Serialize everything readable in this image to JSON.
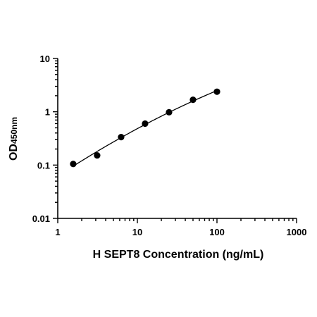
{
  "chart_data": {
    "type": "scatter",
    "title": "",
    "xlabel": "H SEPT8 Concentration (ng/mL)",
    "ylabel_main": "OD",
    "ylabel_sub": "450nm",
    "x_scale": "log",
    "y_scale": "log",
    "xlim": [
      1,
      1000
    ],
    "ylim": [
      0.01,
      10
    ],
    "x_ticks": [
      1,
      10,
      100,
      1000
    ],
    "x_tick_labels": [
      "1",
      "10",
      "100",
      "1000"
    ],
    "y_ticks": [
      0.01,
      0.1,
      1,
      10
    ],
    "y_tick_labels": [
      "0.01",
      "0.1",
      "1",
      "10"
    ],
    "grid": false,
    "fit_line": true,
    "series": [
      {
        "x": [
          1.5625,
          3.125,
          6.25,
          12.5,
          25,
          50,
          100
        ],
        "y": [
          0.105,
          0.152,
          0.335,
          0.6,
          0.98,
          1.68,
          2.38
        ]
      }
    ]
  }
}
